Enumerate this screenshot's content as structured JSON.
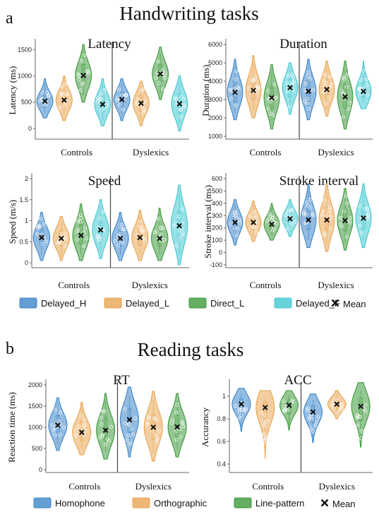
{
  "sections": [
    {
      "letter": "a",
      "title": "Handwriting tasks"
    },
    {
      "letter": "b",
      "title": "Reading tasks"
    }
  ],
  "legends": [
    {
      "items": [
        {
          "label": "Delayed_H",
          "color": "#3d86c8"
        },
        {
          "label": "Delayed_L",
          "color": "#e9a553"
        },
        {
          "label": "Direct_L",
          "color": "#3f9a3c"
        },
        {
          "label": "Delayed_F",
          "color": "#43c8d2"
        }
      ],
      "mean_label": "Mean"
    },
    {
      "items": [
        {
          "label": "Homophone",
          "color": "#3d86c8"
        },
        {
          "label": "Orthographic",
          "color": "#e9a553"
        },
        {
          "label": "Line-pattern",
          "color": "#3f9a3c"
        }
      ],
      "mean_label": "Mean"
    }
  ],
  "chart_data": [
    {
      "type": "violin",
      "title": "Latency",
      "ylabel": "Latency  (ms)",
      "ylim": [
        -150,
        1600
      ],
      "yticks": [
        "0",
        "500",
        "1000",
        "1500"
      ],
      "ytick_values": [
        0,
        500,
        1000,
        1500
      ],
      "groups": [
        "Controls",
        "Dyslexics"
      ],
      "series": [
        {
          "name": "Delayed_H",
          "color": "#3d86c8",
          "mean": [
            520,
            550
          ],
          "min": [
            200,
            150
          ],
          "max": [
            950,
            950
          ]
        },
        {
          "name": "Delayed_L",
          "color": "#e9a553",
          "mean": [
            540,
            480
          ],
          "min": [
            150,
            50
          ],
          "max": [
            1000,
            900
          ]
        },
        {
          "name": "Direct_L",
          "color": "#3f9a3c",
          "mean": [
            1010,
            1040
          ],
          "min": [
            500,
            550
          ],
          "max": [
            1600,
            1550
          ]
        },
        {
          "name": "Delayed_F",
          "color": "#43c8d2",
          "mean": [
            460,
            470
          ],
          "min": [
            50,
            -50
          ],
          "max": [
            950,
            1000
          ]
        }
      ]
    },
    {
      "type": "violin",
      "title": "Duration",
      "ylabel": "Duration (ms)",
      "ylim": [
        1000,
        6000
      ],
      "yticks": [
        "1000",
        "2000",
        "3000",
        "4000",
        "5000",
        "6000"
      ],
      "ytick_values": [
        1000,
        2000,
        3000,
        4000,
        5000,
        6000
      ],
      "groups": [
        "Controls",
        "Dyslexics"
      ],
      "series": [
        {
          "name": "Delayed_H",
          "color": "#3d86c8",
          "mean": [
            3400,
            3450
          ],
          "min": [
            1900,
            1900
          ],
          "max": [
            5200,
            5200
          ]
        },
        {
          "name": "Delayed_L",
          "color": "#e9a553",
          "mean": [
            3500,
            3550
          ],
          "min": [
            2000,
            2100
          ],
          "max": [
            5400,
            5100
          ]
        },
        {
          "name": "Direct_L",
          "color": "#3f9a3c",
          "mean": [
            3100,
            3150
          ],
          "min": [
            1400,
            1400
          ],
          "max": [
            4900,
            5100
          ]
        },
        {
          "name": "Delayed_F",
          "color": "#43c8d2",
          "mean": [
            3650,
            3450
          ],
          "min": [
            2200,
            2500
          ],
          "max": [
            5000,
            5100
          ]
        }
      ]
    },
    {
      "type": "violin",
      "title": "Speed",
      "ylabel": "Speed (m/s)",
      "ylim": [
        -0.05,
        2
      ],
      "yticks": [
        "0",
        "0.5",
        "1",
        "1.5",
        "2"
      ],
      "ytick_values": [
        0,
        0.5,
        1,
        1.5,
        2
      ],
      "groups": [
        "Controls",
        "Dyslexics"
      ],
      "series": [
        {
          "name": "Delayed_H",
          "color": "#3d86c8",
          "mean": [
            0.6,
            0.58
          ],
          "min": [
            0.05,
            0.05
          ],
          "max": [
            1.2,
            1.2
          ]
        },
        {
          "name": "Delayed_L",
          "color": "#e9a553",
          "mean": [
            0.58,
            0.6
          ],
          "min": [
            0.05,
            0.05
          ],
          "max": [
            1.1,
            1.25
          ]
        },
        {
          "name": "Direct_L",
          "color": "#3f9a3c",
          "mean": [
            0.65,
            0.58
          ],
          "min": [
            0.05,
            0.05
          ],
          "max": [
            1.4,
            1.3
          ]
        },
        {
          "name": "Delayed_F",
          "color": "#43c8d2",
          "mean": [
            0.78,
            0.88
          ],
          "min": [
            0.1,
            -0.05
          ],
          "max": [
            1.5,
            1.85
          ]
        }
      ]
    },
    {
      "type": "violin",
      "title": "Stroke interval",
      "ylabel": "Stroke interval (ms)",
      "ylim": [
        -100,
        600
      ],
      "yticks": [
        "-100",
        "0",
        "100",
        "200",
        "300",
        "400",
        "500",
        "600"
      ],
      "ytick_values": [
        -100,
        0,
        100,
        200,
        300,
        400,
        500,
        600
      ],
      "groups": [
        "Controls",
        "Dyslexics"
      ],
      "series": [
        {
          "name": "Delayed_H",
          "color": "#3d86c8",
          "mean": [
            245,
            265
          ],
          "min": [
            60,
            40
          ],
          "max": [
            430,
            560
          ]
        },
        {
          "name": "Delayed_L",
          "color": "#e9a553",
          "mean": [
            245,
            265
          ],
          "min": [
            90,
            10
          ],
          "max": [
            420,
            560
          ]
        },
        {
          "name": "Direct_L",
          "color": "#3f9a3c",
          "mean": [
            230,
            260
          ],
          "min": [
            100,
            20
          ],
          "max": [
            400,
            520
          ]
        },
        {
          "name": "Delayed_F",
          "color": "#43c8d2",
          "mean": [
            275,
            280
          ],
          "min": [
            130,
            40
          ],
          "max": [
            430,
            560
          ]
        }
      ]
    },
    {
      "type": "violin",
      "title": "RT",
      "ylabel": "Reaction time (ms)",
      "ylim": [
        0,
        2000
      ],
      "yticks": [
        "0",
        "500",
        "1000",
        "1500",
        "2000"
      ],
      "ytick_values": [
        0,
        500,
        1000,
        1500,
        2000
      ],
      "groups": [
        "Controls",
        "Dyslexics"
      ],
      "series": [
        {
          "name": "Homophone",
          "color": "#3d86c8",
          "mean": [
            1050,
            1180
          ],
          "min": [
            450,
            300
          ],
          "max": [
            1700,
            1950
          ]
        },
        {
          "name": "Orthographic",
          "color": "#e9a553",
          "mean": [
            880,
            1000
          ],
          "min": [
            350,
            200
          ],
          "max": [
            1600,
            1850
          ]
        },
        {
          "name": "Line-pattern",
          "color": "#3f9a3c",
          "mean": [
            930,
            1010
          ],
          "min": [
            250,
            300
          ],
          "max": [
            1800,
            1800
          ]
        }
      ]
    },
    {
      "type": "violin",
      "title": "ACC",
      "ylabel": "Accurancy",
      "ylim": [
        0.35,
        1.1
      ],
      "yticks": [
        "0.4",
        "0.6",
        "0.8",
        "1"
      ],
      "ytick_values": [
        0.4,
        0.6,
        0.8,
        1
      ],
      "groups": [
        "Controls",
        "Dyslexics"
      ],
      "series": [
        {
          "name": "Homophone",
          "color": "#3d86c8",
          "mean": [
            0.93,
            0.86
          ],
          "min": [
            0.69,
            0.59
          ],
          "max": [
            1.07,
            1.02
          ]
        },
        {
          "name": "Orthographic",
          "color": "#e9a553",
          "mean": [
            0.9,
            0.93
          ],
          "min": [
            0.45,
            0.8
          ],
          "max": [
            1.05,
            1.05
          ]
        },
        {
          "name": "Line-pattern",
          "color": "#3f9a3c",
          "mean": [
            0.92,
            0.91
          ],
          "min": [
            0.7,
            0.55
          ],
          "max": [
            1.05,
            1.12
          ]
        }
      ]
    }
  ]
}
